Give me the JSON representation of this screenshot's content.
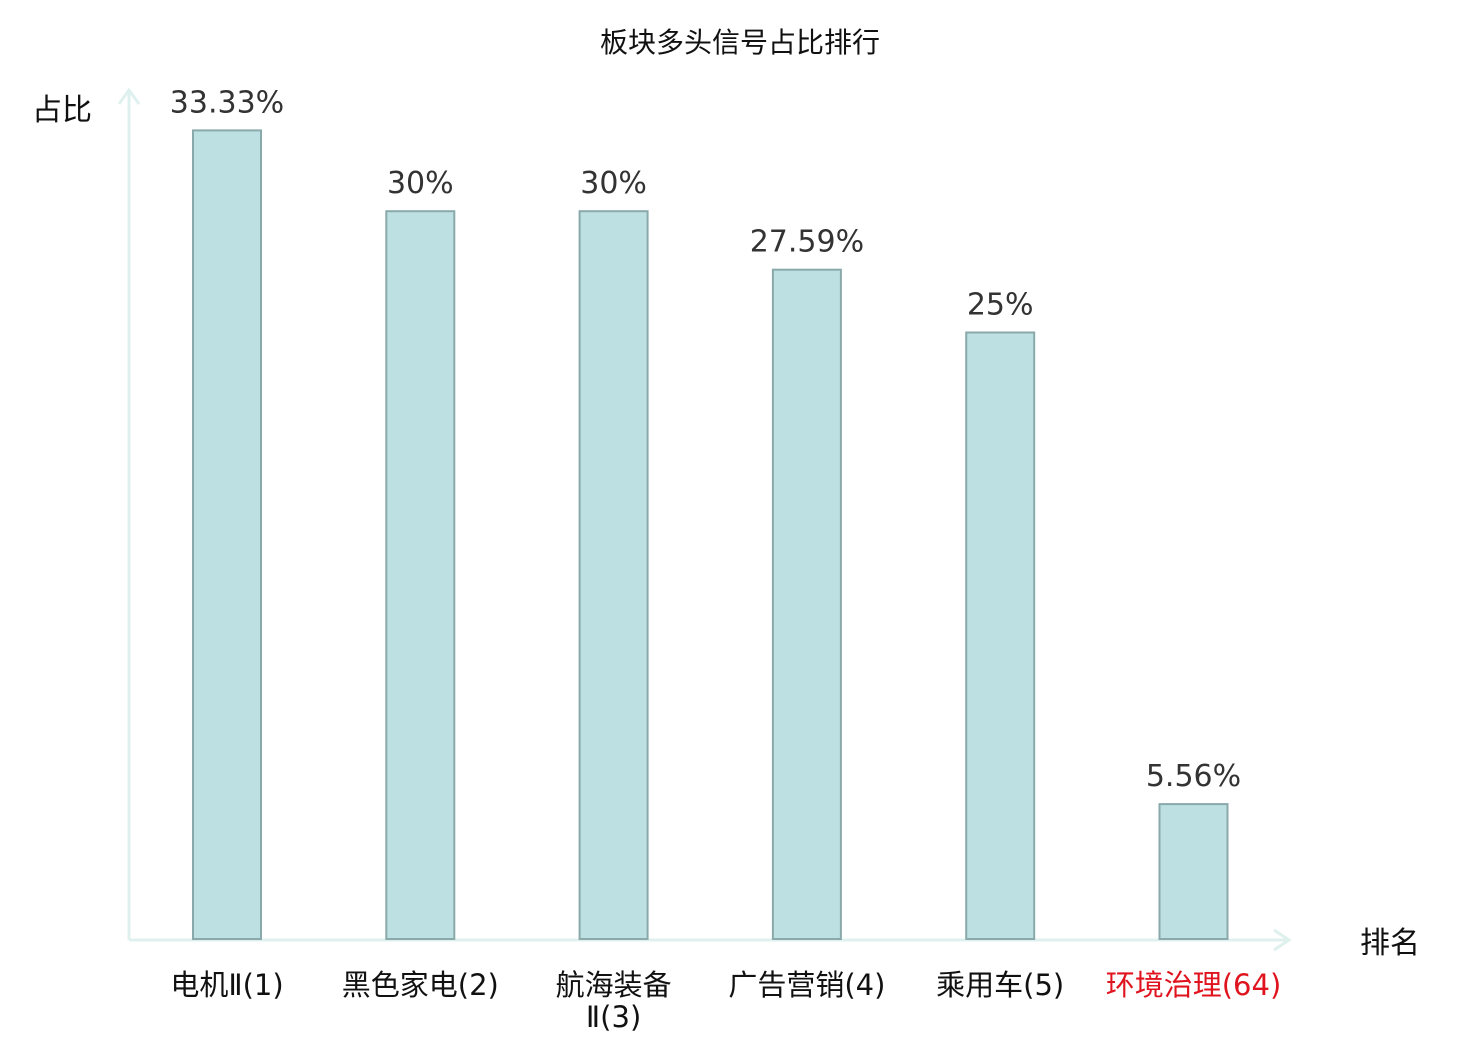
{
  "chart_data": {
    "type": "bar",
    "title": "板块多头信号占比排行",
    "ylabel": "占比",
    "xlabel": "排名",
    "ylim": [
      0,
      35
    ],
    "categories": [
      {
        "label": "电机Ⅱ(1)",
        "lines": [
          "电机Ⅱ(1)"
        ],
        "highlight": false
      },
      {
        "label": "黑色家电(2)",
        "lines": [
          "黑色家电(2)"
        ],
        "highlight": false
      },
      {
        "label": "航海装备Ⅱ(3)",
        "lines": [
          "航海装备",
          "Ⅱ(3)"
        ],
        "highlight": false
      },
      {
        "label": "广告营销(4)",
        "lines": [
          "广告营销(4)"
        ],
        "highlight": false
      },
      {
        "label": "乘用车(5)",
        "lines": [
          "乘用车(5)"
        ],
        "highlight": false
      },
      {
        "label": "环境治理(64)",
        "lines": [
          "环境治理(64)"
        ],
        "highlight": true
      }
    ],
    "values": [
      33.33,
      30,
      30,
      27.59,
      25,
      5.56
    ],
    "value_labels": [
      "33.33%",
      "30%",
      "30%",
      "27.59%",
      "25%",
      "5.56%"
    ],
    "grid": false,
    "legend": "none",
    "colors": {
      "bar_fill": "#bde0e2",
      "bar_stroke": "#8aa9ab",
      "axis": "#dff1ee",
      "highlight_text": "#e0141e"
    }
  }
}
